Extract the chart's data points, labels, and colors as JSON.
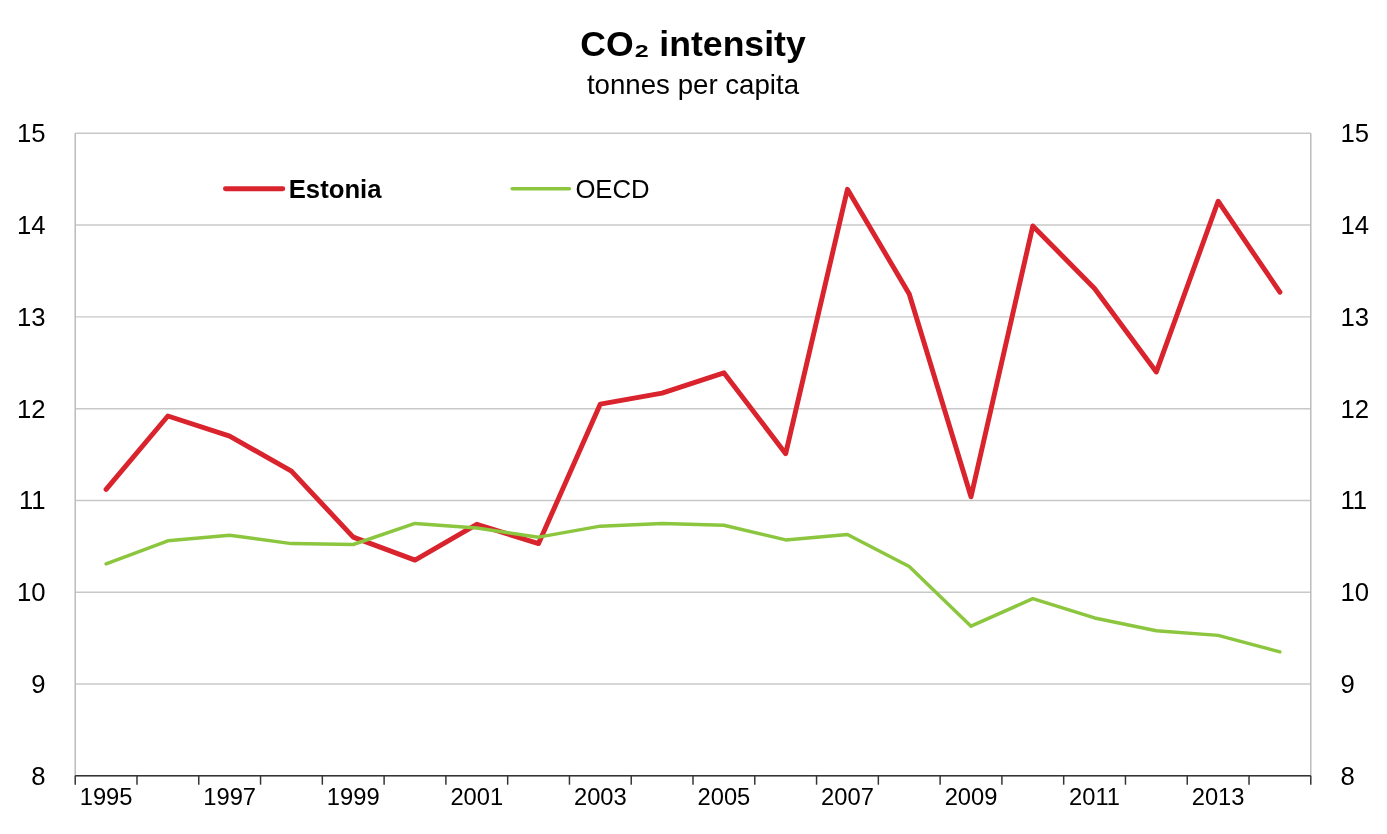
{
  "chart_data": {
    "type": "line",
    "title": "CO₂ intensity",
    "subtitle": "tonnes per capita",
    "categories": [
      "1995",
      null,
      "1997",
      null,
      "1999",
      null,
      "2001",
      null,
      "2003",
      null,
      "2005",
      null,
      "2007",
      null,
      "2009",
      null,
      "2011",
      null,
      "2013",
      null
    ],
    "series": [
      {
        "name": "Estonia",
        "color": "#d9232d",
        "values": [
          11.12,
          11.92,
          11.7,
          11.32,
          10.6,
          10.35,
          10.74,
          10.53,
          12.05,
          12.17,
          12.39,
          11.51,
          14.39,
          13.25,
          11.04,
          13.99,
          13.31,
          12.4,
          14.26,
          13.27
        ]
      },
      {
        "name": "OECD",
        "color": "#8cc63f",
        "values": [
          10.31,
          10.56,
          10.62,
          10.53,
          10.52,
          10.75,
          10.7,
          10.6,
          10.72,
          10.75,
          10.73,
          10.57,
          10.63,
          10.28,
          9.63,
          9.93,
          9.72,
          9.58,
          9.53,
          9.35
        ]
      }
    ],
    "ylim": [
      8,
      15
    ],
    "yticks": [
      8,
      9,
      10,
      11,
      12,
      13,
      14,
      15
    ],
    "y2lim": [
      8,
      15
    ],
    "y2ticks": [
      8,
      9,
      10,
      11,
      12,
      13,
      14,
      15
    ],
    "grid": "y",
    "legend": "top left",
    "line_style": "solid",
    "marker": "none"
  }
}
